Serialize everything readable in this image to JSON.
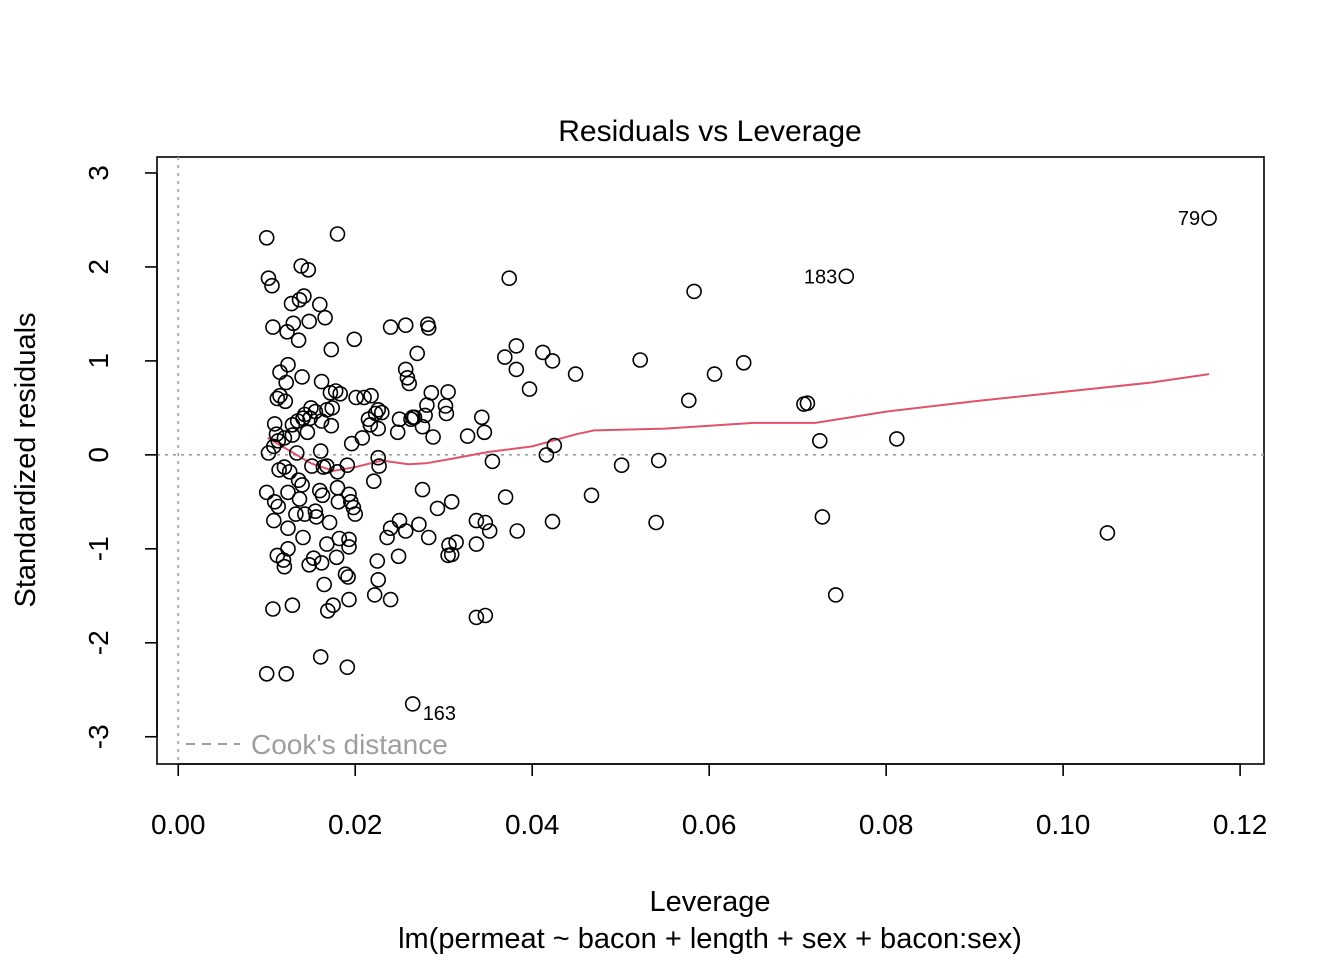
{
  "chart_data": {
    "type": "scatter",
    "title": "Residuals vs Leverage",
    "xlabel": "Leverage",
    "sublabel": "lm(permeat ~ bacon + length + sex + bacon:sex)",
    "ylabel": "Standardized residuals",
    "xlim": [
      -0.0024,
      0.1227
    ],
    "ylim": [
      -3.29,
      3.17
    ],
    "x_ticks": [
      0.0,
      0.02,
      0.04,
      0.06,
      0.08,
      0.1,
      0.12
    ],
    "x_tick_labels": [
      "0.00",
      "0.02",
      "0.04",
      "0.06",
      "0.08",
      "0.10",
      "0.12"
    ],
    "y_ticks": [
      -3,
      -2,
      -1,
      0,
      1,
      2,
      3
    ],
    "y_tick_labels": [
      "-3",
      "-2",
      "-1",
      "0",
      "1",
      "2",
      "3"
    ],
    "legend": {
      "text": "Cook's distance",
      "position": "bottom-left"
    },
    "colors": {
      "points": "#000000",
      "smooth": "#DF536B",
      "reference": "#9E9E9E"
    },
    "reference_lines": {
      "h": 0,
      "v": 0
    },
    "labeled_points": [
      {
        "label": "79",
        "x": 0.1165,
        "y": 2.52
      },
      {
        "label": "183",
        "x": 0.0755,
        "y": 1.9
      },
      {
        "label": "163",
        "x": 0.0265,
        "y": -2.65
      }
    ],
    "smooth": {
      "x": [
        0.0101,
        0.0125,
        0.015,
        0.0175,
        0.02,
        0.023,
        0.026,
        0.028,
        0.031,
        0.035,
        0.04,
        0.045,
        0.047,
        0.055,
        0.065,
        0.072,
        0.08,
        0.09,
        0.1,
        0.11,
        0.1165
      ],
      "y": [
        0.18,
        0.05,
        -0.09,
        -0.17,
        -0.13,
        -0.06,
        -0.1,
        -0.09,
        -0.04,
        0.03,
        0.09,
        0.22,
        0.26,
        0.28,
        0.34,
        0.34,
        0.46,
        0.57,
        0.67,
        0.77,
        0.86
      ]
    },
    "points": [
      [
        0.01,
        2.31
      ],
      [
        0.0102,
        1.88
      ],
      [
        0.0106,
        1.8
      ],
      [
        0.0107,
        1.36
      ],
      [
        0.018,
        2.35
      ],
      [
        0.0139,
        2.01
      ],
      [
        0.0147,
        1.97
      ],
      [
        0.0128,
        1.61
      ],
      [
        0.0142,
        1.69
      ],
      [
        0.0137,
        1.65
      ],
      [
        0.016,
        1.6
      ],
      [
        0.0166,
        1.46
      ],
      [
        0.0123,
        1.31
      ],
      [
        0.013,
        1.4
      ],
      [
        0.0148,
        1.42
      ],
      [
        0.0136,
        1.22
      ],
      [
        0.0173,
        1.12
      ],
      [
        0.0199,
        1.23
      ],
      [
        0.0115,
        0.88
      ],
      [
        0.0124,
        0.96
      ],
      [
        0.014,
        0.83
      ],
      [
        0.0122,
        0.77
      ],
      [
        0.0162,
        0.78
      ],
      [
        0.0172,
        0.66
      ],
      [
        0.0178,
        0.68
      ],
      [
        0.0112,
        0.6
      ],
      [
        0.0115,
        0.63
      ],
      [
        0.0121,
        0.57
      ],
      [
        0.0168,
        0.48
      ],
      [
        0.0183,
        0.65
      ],
      [
        0.0201,
        0.61
      ],
      [
        0.021,
        0.61
      ],
      [
        0.0218,
        0.63
      ],
      [
        0.015,
        0.5
      ],
      [
        0.0143,
        0.43
      ],
      [
        0.0155,
        0.46
      ],
      [
        0.0174,
        0.5
      ],
      [
        0.0226,
        0.48
      ],
      [
        0.0223,
        0.44
      ],
      [
        0.0215,
        0.38
      ],
      [
        0.023,
        0.45
      ],
      [
        0.0141,
        0.39
      ],
      [
        0.0135,
        0.36
      ],
      [
        0.0129,
        0.32
      ],
      [
        0.0149,
        0.39
      ],
      [
        0.0162,
        0.36
      ],
      [
        0.0109,
        0.33
      ],
      [
        0.0173,
        0.31
      ],
      [
        0.0217,
        0.32
      ],
      [
        0.0226,
        0.28
      ],
      [
        0.0111,
        0.22
      ],
      [
        0.012,
        0.18
      ],
      [
        0.0129,
        0.21
      ],
      [
        0.0146,
        0.24
      ],
      [
        0.0196,
        0.12
      ],
      [
        0.0208,
        0.18
      ],
      [
        0.0102,
        0.02
      ],
      [
        0.0108,
        0.09
      ],
      [
        0.0113,
        0.15
      ],
      [
        0.0134,
        0.02
      ],
      [
        0.0161,
        0.04
      ],
      [
        0.0151,
        -0.12
      ],
      [
        0.0164,
        -0.13
      ],
      [
        0.0168,
        -0.12
      ],
      [
        0.0114,
        -0.16
      ],
      [
        0.012,
        -0.13
      ],
      [
        0.0126,
        -0.18
      ],
      [
        0.018,
        -0.18
      ],
      [
        0.0191,
        -0.11
      ],
      [
        0.0226,
        -0.03
      ],
      [
        0.0227,
        -0.12
      ],
      [
        0.01,
        -0.4
      ],
      [
        0.0109,
        -0.5
      ],
      [
        0.0113,
        -0.55
      ],
      [
        0.0124,
        -0.4
      ],
      [
        0.0136,
        -0.27
      ],
      [
        0.014,
        -0.32
      ],
      [
        0.0137,
        -0.47
      ],
      [
        0.016,
        -0.38
      ],
      [
        0.0163,
        -0.43
      ],
      [
        0.018,
        -0.35
      ],
      [
        0.0181,
        -0.5
      ],
      [
        0.0193,
        -0.42
      ],
      [
        0.0195,
        -0.5
      ],
      [
        0.0198,
        -0.56
      ],
      [
        0.02,
        -0.63
      ],
      [
        0.0221,
        -0.28
      ],
      [
        0.0108,
        -0.7
      ],
      [
        0.0133,
        -0.63
      ],
      [
        0.0143,
        -0.63
      ],
      [
        0.0155,
        -0.6
      ],
      [
        0.0156,
        -0.66
      ],
      [
        0.0171,
        -0.72
      ],
      [
        0.0124,
        -0.78
      ],
      [
        0.0141,
        -0.88
      ],
      [
        0.0168,
        -0.95
      ],
      [
        0.0182,
        -0.89
      ],
      [
        0.0193,
        -0.9
      ],
      [
        0.0193,
        -0.98
      ],
      [
        0.0124,
        -1.0
      ],
      [
        0.0112,
        -1.07
      ],
      [
        0.0119,
        -1.12
      ],
      [
        0.012,
        -1.19
      ],
      [
        0.0148,
        -1.17
      ],
      [
        0.0153,
        -1.1
      ],
      [
        0.0162,
        -1.15
      ],
      [
        0.0179,
        -1.09
      ],
      [
        0.0189,
        -1.27
      ],
      [
        0.0192,
        -1.3
      ],
      [
        0.0165,
        -1.38
      ],
      [
        0.0193,
        -1.54
      ],
      [
        0.0175,
        -1.6
      ],
      [
        0.0169,
        -1.66
      ],
      [
        0.0107,
        -1.64
      ],
      [
        0.0129,
        -1.6
      ],
      [
        0.0161,
        -2.15
      ],
      [
        0.0191,
        -2.26
      ],
      [
        0.01,
        -2.33
      ],
      [
        0.0122,
        -2.33
      ],
      [
        0.024,
        1.36
      ],
      [
        0.0257,
        1.38
      ],
      [
        0.0282,
        1.39
      ],
      [
        0.0283,
        1.35
      ],
      [
        0.027,
        1.08
      ],
      [
        0.0257,
        0.91
      ],
      [
        0.0259,
        0.82
      ],
      [
        0.0261,
        0.76
      ],
      [
        0.0286,
        0.66
      ],
      [
        0.0305,
        0.67
      ],
      [
        0.0281,
        0.53
      ],
      [
        0.0302,
        0.52
      ],
      [
        0.0303,
        0.44
      ],
      [
        0.0279,
        0.42
      ],
      [
        0.0267,
        0.4
      ],
      [
        0.0263,
        0.38
      ],
      [
        0.025,
        0.38
      ],
      [
        0.0248,
        0.24
      ],
      [
        0.0265,
        0.4
      ],
      [
        0.0276,
        0.3
      ],
      [
        0.0288,
        0.19
      ],
      [
        0.0327,
        0.2
      ],
      [
        0.0343,
        0.4
      ],
      [
        0.0346,
        0.24
      ],
      [
        0.0374,
        1.88
      ],
      [
        0.0369,
        1.04
      ],
      [
        0.0382,
        1.16
      ],
      [
        0.0382,
        0.91
      ],
      [
        0.0397,
        0.7
      ],
      [
        0.0412,
        1.09
      ],
      [
        0.0423,
        1.0
      ],
      [
        0.0449,
        0.86
      ],
      [
        0.0425,
        0.1
      ],
      [
        0.0416,
        0.0
      ],
      [
        0.0355,
        -0.07
      ],
      [
        0.0276,
        -0.37
      ],
      [
        0.0293,
        -0.57
      ],
      [
        0.0309,
        -0.5
      ],
      [
        0.025,
        -0.7
      ],
      [
        0.024,
        -0.78
      ],
      [
        0.0236,
        -0.88
      ],
      [
        0.0257,
        -0.81
      ],
      [
        0.0272,
        -0.74
      ],
      [
        0.0283,
        -0.88
      ],
      [
        0.0306,
        -0.96
      ],
      [
        0.0314,
        -0.93
      ],
      [
        0.0305,
        -1.07
      ],
      [
        0.0309,
        -1.06
      ],
      [
        0.0249,
        -1.08
      ],
      [
        0.0225,
        -1.13
      ],
      [
        0.0226,
        -1.33
      ],
      [
        0.0222,
        -1.49
      ],
      [
        0.024,
        -1.54
      ],
      [
        0.0337,
        -0.7
      ],
      [
        0.0347,
        -0.72
      ],
      [
        0.0352,
        -0.81
      ],
      [
        0.0337,
        -0.95
      ],
      [
        0.037,
        -0.45
      ],
      [
        0.0383,
        -0.81
      ],
      [
        0.0423,
        -0.71
      ],
      [
        0.0337,
        -1.73
      ],
      [
        0.0347,
        -1.71
      ],
      [
        0.0265,
        -2.65
      ],
      [
        0.0467,
        -0.43
      ],
      [
        0.0501,
        -0.11
      ],
      [
        0.0522,
        1.01
      ],
      [
        0.0543,
        -0.06
      ],
      [
        0.054,
        -0.72
      ],
      [
        0.0583,
        1.74
      ],
      [
        0.0577,
        0.58
      ],
      [
        0.0606,
        0.86
      ],
      [
        0.0639,
        0.98
      ],
      [
        0.0707,
        0.54
      ],
      [
        0.0711,
        0.55
      ],
      [
        0.0725,
        0.15
      ],
      [
        0.0728,
        -0.66
      ],
      [
        0.0743,
        -1.49
      ],
      [
        0.0755,
        1.9
      ],
      [
        0.0812,
        0.17
      ],
      [
        0.105,
        -0.83
      ],
      [
        0.1165,
        2.52
      ]
    ]
  }
}
